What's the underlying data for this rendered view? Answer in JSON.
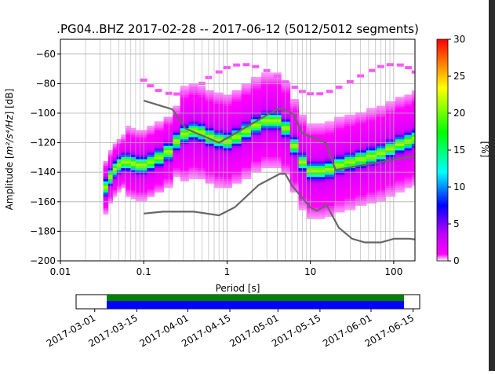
{
  "chart_data": [
    {
      "type": "heatmap",
      "title": ".PG04..BHZ   2017-02-28 -- 2017-06-12  (5012/5012 segments)",
      "xlabel": "Period [s]",
      "ylabel_pre": "Amplitude [",
      "ylabel_unit": "m²/s⁴/Hz",
      "ylabel_post": "] [dB]",
      "xscale": "log",
      "xlim": [
        0.01,
        180
      ],
      "ylim": [
        -200,
        -50
      ],
      "x_ticks": [
        {
          "value": 0.01,
          "label": "0.01"
        },
        {
          "value": 0.1,
          "label": "0.1"
        },
        {
          "value": 1,
          "label": "1"
        },
        {
          "value": 10,
          "label": "10"
        },
        {
          "value": 100,
          "label": "100"
        }
      ],
      "y_ticks": [
        {
          "value": -60,
          "label": "−60"
        },
        {
          "value": -80,
          "label": "−80"
        },
        {
          "value": -100,
          "label": "−100"
        },
        {
          "value": -120,
          "label": "−120"
        },
        {
          "value": -140,
          "label": "−140"
        },
        {
          "value": -160,
          "label": "−160"
        },
        {
          "value": -180,
          "label": "−180"
        },
        {
          "value": -200,
          "label": "−200"
        }
      ],
      "grid": true,
      "period_bins": [
        0.035,
        0.04,
        0.045,
        0.05,
        0.057,
        0.065,
        0.075,
        0.085,
        0.1,
        0.12,
        0.15,
        0.2,
        0.25,
        0.3,
        0.4,
        0.5,
        0.6,
        0.8,
        1,
        1.3,
        1.7,
        2.2,
        3,
        4,
        5,
        6.5,
        8,
        10,
        13,
        17,
        22,
        30,
        40,
        55,
        70,
        90,
        120,
        150,
        180
      ],
      "mode_db": [
        -150,
        -143,
        -138,
        -135,
        -133,
        -133,
        -134,
        -135,
        -135,
        -133,
        -130,
        -126,
        -119,
        -114,
        -112,
        -113,
        -116,
        -118,
        -119,
        -116,
        -112,
        -108,
        -105,
        -105,
        -110,
        -122,
        -133,
        -139,
        -139,
        -138,
        -135,
        -133,
        -131,
        -129,
        -127,
        -124,
        -121,
        -119,
        -117
      ],
      "colorbar": {
        "label": "[%]",
        "range": [
          0,
          30
        ],
        "ticks": [
          "0",
          "5",
          "10",
          "15",
          "20",
          "25",
          "30"
        ],
        "colormap": [
          "#ffffff",
          "#ff00ff",
          "#0000ff",
          "#00ffff",
          "#00ff00",
          "#ffff00",
          "#ff0000"
        ]
      },
      "noise_models": {
        "color": "#666666",
        "NHNM": {
          "period": [
            0.1,
            0.22,
            0.32,
            0.8,
            3.8,
            4.6,
            6.3,
            7.9,
            15.4,
            20,
            354.8
          ],
          "db": [
            -91.5,
            -97.4,
            -110.5,
            -120,
            -98,
            -96.5,
            -101,
            -113.5,
            -120,
            -138.5,
            -126
          ]
        },
        "NLNM": {
          "period": [
            0.1,
            0.17,
            0.4,
            0.8,
            1.24,
            2.4,
            4.3,
            5,
            6,
            10,
            12,
            15.6,
            21.9,
            31.6,
            45,
            70,
            101,
            154,
            180
          ],
          "db": [
            -168,
            -166.7,
            -166.7,
            -169.2,
            -163.7,
            -148.6,
            -141.1,
            -141.1,
            -149,
            -163.8,
            -166.2,
            -162.1,
            -177.5,
            -185,
            -187.5,
            -187.5,
            -185,
            -185,
            -185.5
          ]
        }
      }
    },
    {
      "type": "bar",
      "title": "",
      "xlabel": "",
      "ylabel": "",
      "description_source": "data coverage strip",
      "date_range": [
        "2017-02-28",
        "2017-06-12"
      ],
      "covered_range": [
        "2017-03-05",
        "2017-06-12"
      ],
      "colors": {
        "top": "#008000",
        "bottom": "#0000ff"
      },
      "x_ticks": [
        "2017-03-01",
        "2017-03-15",
        "2017-04-01",
        "2017-04-15",
        "2017-05-01",
        "2017-05-15",
        "2017-06-01",
        "2017-06-15"
      ]
    }
  ]
}
